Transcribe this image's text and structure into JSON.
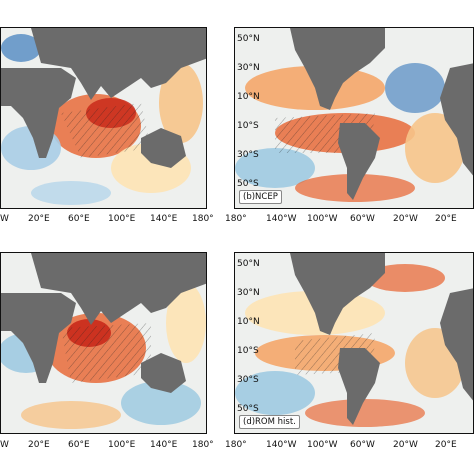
{
  "panels": {
    "b": {
      "label": "(b)NCEP"
    },
    "d": {
      "label": "(d)ROM hist."
    }
  },
  "axes": {
    "left_lon_ticks": [
      "W",
      "20°E",
      "60°E",
      "100°E",
      "140°E",
      "180°"
    ],
    "right_lon_ticks": [
      "180°",
      "140°W",
      "100°W",
      "60°W",
      "20°W",
      "20°E"
    ],
    "lat_ticks": [
      "50°N",
      "30°N",
      "10°N",
      "10°S",
      "30°S",
      "50°S"
    ]
  },
  "colors": {
    "land": "#6b6b6b",
    "ocean_base": "#e9eef0",
    "warm_strong": "#d7301f",
    "warm": "#f4a261",
    "warm_light": "#fde3b4",
    "cool": "#9ecae1",
    "cool_strong": "#3a78b5"
  }
}
